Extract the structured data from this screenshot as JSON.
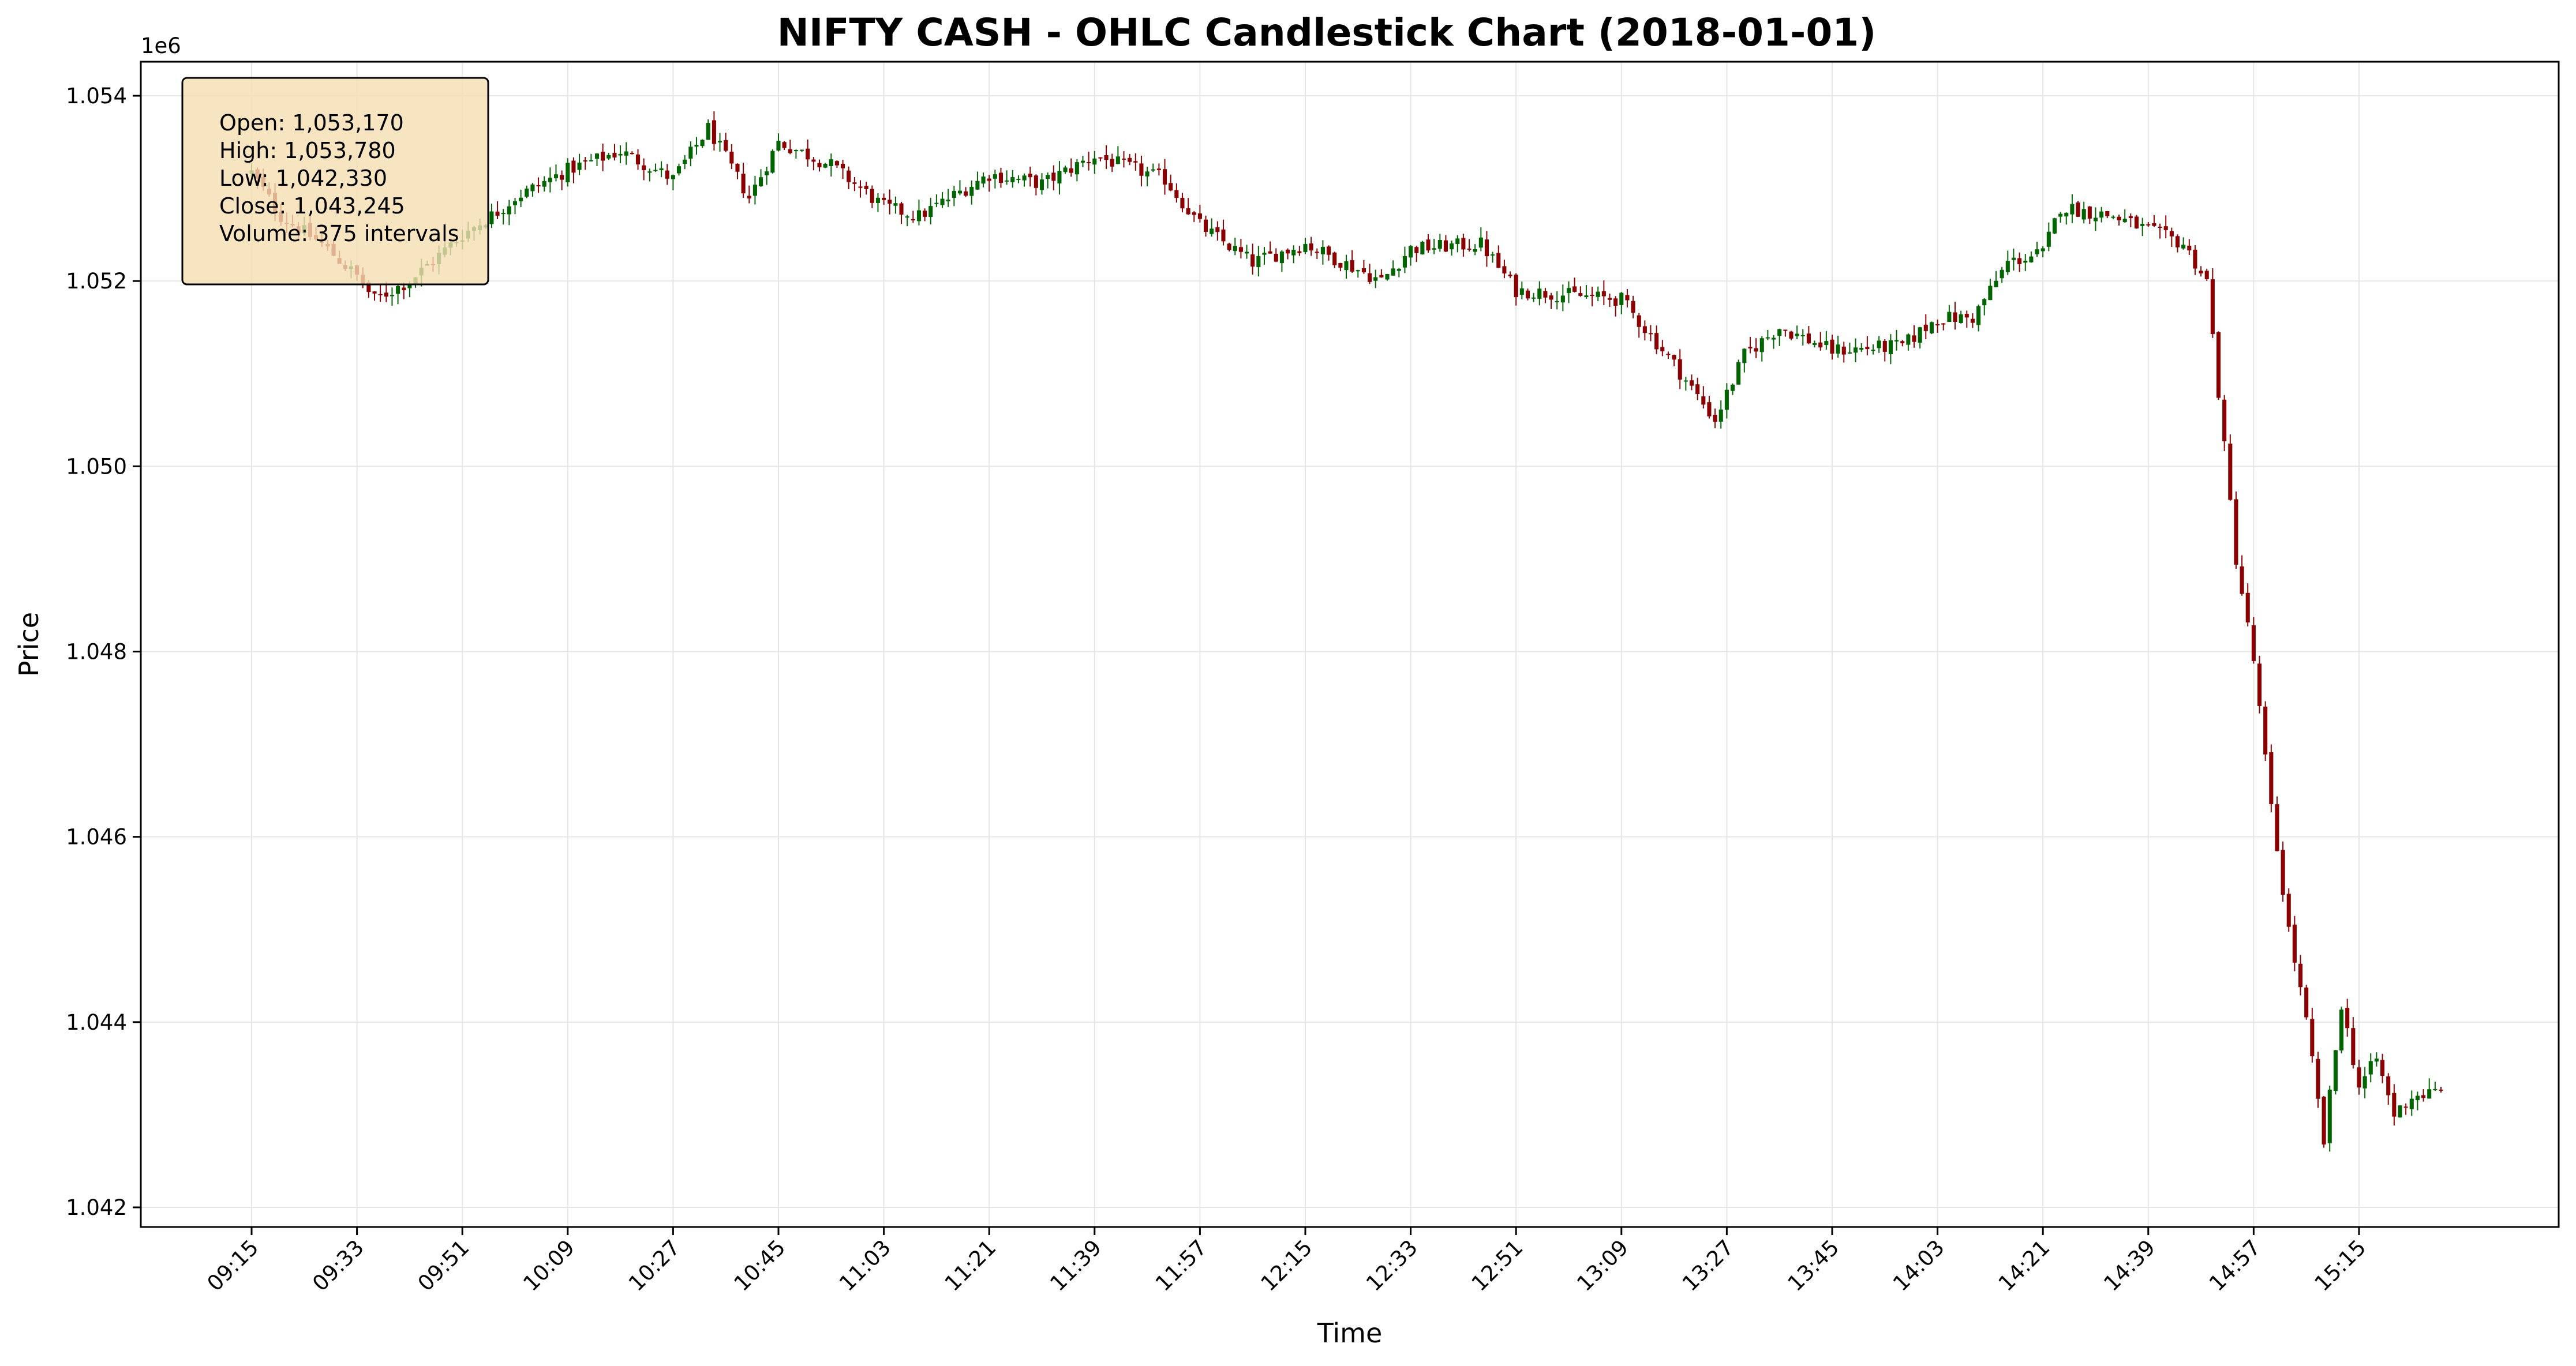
{
  "chart_data": {
    "type": "candlestick",
    "title": "NIFTY CASH - OHLC Candlestick Chart (2018-01-01)",
    "xlabel": "Time",
    "ylabel": "Price",
    "y_offset_label": "1e6",
    "ylim": [
      1041750,
      1054400
    ],
    "y_ticks": [
      {
        "value": 1042000,
        "label": "1.042"
      },
      {
        "value": 1044000,
        "label": "1.044"
      },
      {
        "value": 1046000,
        "label": "1.046"
      },
      {
        "value": 1048000,
        "label": "1.048"
      },
      {
        "value": 1050000,
        "label": "1.050"
      },
      {
        "value": 1052000,
        "label": "1.052"
      },
      {
        "value": 1054000,
        "label": "1.054"
      }
    ],
    "x_ticks": [
      "09:15",
      "09:33",
      "09:51",
      "10:09",
      "10:27",
      "10:45",
      "11:03",
      "11:21",
      "11:39",
      "11:57",
      "12:15",
      "12:33",
      "12:51",
      "13:09",
      "13:27",
      "13:45",
      "14:03",
      "14:21",
      "14:39",
      "14:57",
      "15:15"
    ],
    "grid": true,
    "colors": {
      "up": "#006400",
      "down": "#8b0000"
    },
    "price_path": [
      {
        "time": "09:15",
        "price": 1053170
      },
      {
        "time": "09:20",
        "price": 1052700
      },
      {
        "time": "09:27",
        "price": 1052400
      },
      {
        "time": "09:33",
        "price": 1052050
      },
      {
        "time": "09:36",
        "price": 1051800
      },
      {
        "time": "09:42",
        "price": 1052000
      },
      {
        "time": "09:51",
        "price": 1052500
      },
      {
        "time": "09:57",
        "price": 1052750
      },
      {
        "time": "10:00",
        "price": 1052900
      },
      {
        "time": "10:09",
        "price": 1053200
      },
      {
        "time": "10:18",
        "price": 1053400
      },
      {
        "time": "10:27",
        "price": 1053100
      },
      {
        "time": "10:33",
        "price": 1053650
      },
      {
        "time": "10:40",
        "price": 1052900
      },
      {
        "time": "10:45",
        "price": 1053500
      },
      {
        "time": "10:54",
        "price": 1053250
      },
      {
        "time": "11:03",
        "price": 1052800
      },
      {
        "time": "11:09",
        "price": 1052700
      },
      {
        "time": "11:21",
        "price": 1053150
      },
      {
        "time": "11:30",
        "price": 1053050
      },
      {
        "time": "11:39",
        "price": 1053350
      },
      {
        "time": "11:51",
        "price": 1053100
      },
      {
        "time": "11:57",
        "price": 1052600
      },
      {
        "time": "12:06",
        "price": 1052200
      },
      {
        "time": "12:15",
        "price": 1052400
      },
      {
        "time": "12:28",
        "price": 1052000
      },
      {
        "time": "12:33",
        "price": 1052350
      },
      {
        "time": "12:45",
        "price": 1052400
      },
      {
        "time": "12:51",
        "price": 1051900
      },
      {
        "time": "13:09",
        "price": 1051800
      },
      {
        "time": "13:18",
        "price": 1051100
      },
      {
        "time": "13:25",
        "price": 1050500
      },
      {
        "time": "13:30",
        "price": 1051200
      },
      {
        "time": "13:36",
        "price": 1051500
      },
      {
        "time": "13:45",
        "price": 1051250
      },
      {
        "time": "13:57",
        "price": 1051300
      },
      {
        "time": "14:03",
        "price": 1051600
      },
      {
        "time": "14:09",
        "price": 1051600
      },
      {
        "time": "14:15",
        "price": 1052200
      },
      {
        "time": "14:21",
        "price": 1052300
      },
      {
        "time": "14:24",
        "price": 1052800
      },
      {
        "time": "14:33",
        "price": 1052700
      },
      {
        "time": "14:39",
        "price": 1052550
      },
      {
        "time": "14:45",
        "price": 1052400
      },
      {
        "time": "14:49",
        "price": 1052000
      },
      {
        "time": "14:51",
        "price": 1050800
      },
      {
        "time": "14:54",
        "price": 1049000
      },
      {
        "time": "14:57",
        "price": 1047900
      },
      {
        "time": "15:00",
        "price": 1046300
      },
      {
        "time": "15:03",
        "price": 1045000
      },
      {
        "time": "15:06",
        "price": 1044000
      },
      {
        "time": "15:09",
        "price": 1042700
      },
      {
        "time": "15:12",
        "price": 1044200
      },
      {
        "time": "15:15",
        "price": 1043300
      },
      {
        "time": "15:18",
        "price": 1043600
      },
      {
        "time": "15:21",
        "price": 1043000
      },
      {
        "time": "15:24",
        "price": 1043200
      },
      {
        "time": "15:29",
        "price": 1043245
      }
    ],
    "candle_count": 375,
    "info_box": {
      "lines": [
        "Open: 1,053,170",
        "High: 1,053,780",
        "Low: 1,042,330",
        "Close: 1,043,245",
        "Volume: 375 intervals"
      ],
      "background": "#f5deb3"
    }
  }
}
